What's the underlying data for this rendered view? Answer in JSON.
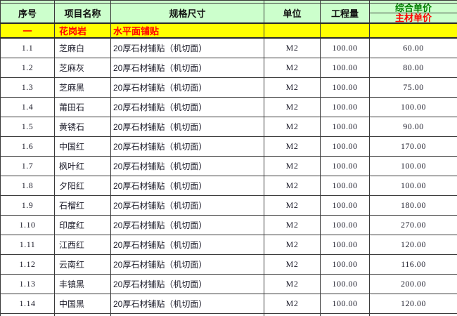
{
  "table": {
    "header": {
      "no": "序号",
      "name": "项目名称",
      "spec": "规格尺寸",
      "unit": "单位",
      "qty": "工程量",
      "price_top": "综合单价",
      "price_bottom": "主材单价"
    },
    "section": {
      "no": "一",
      "name": "花岗岩",
      "spec": "水平面铺贴"
    },
    "rows": [
      {
        "no": "1.1",
        "name": "芝麻白",
        "spec": "20厚石材铺贴（机切面）",
        "unit": "M2",
        "qty": "100.00",
        "price": "60.00"
      },
      {
        "no": "1.2",
        "name": "芝麻灰",
        "spec": "20厚石材铺贴（机切面）",
        "unit": "M2",
        "qty": "100.00",
        "price": "80.00"
      },
      {
        "no": "1.3",
        "name": "芝麻黑",
        "spec": "20厚石材铺贴（机切面）",
        "unit": "M2",
        "qty": "100.00",
        "price": "75.00"
      },
      {
        "no": "1.4",
        "name": "莆田石",
        "spec": "20厚石材铺贴（机切面）",
        "unit": "M2",
        "qty": "100.00",
        "price": "100.00"
      },
      {
        "no": "1.5",
        "name": "黄锈石",
        "spec": "20厚石材铺贴（机切面）",
        "unit": "M2",
        "qty": "100.00",
        "price": "90.00"
      },
      {
        "no": "1.6",
        "name": "中国红",
        "spec": "20厚石材铺贴（机切面）",
        "unit": "M2",
        "qty": "100.00",
        "price": "170.00"
      },
      {
        "no": "1.7",
        "name": "枫叶红",
        "spec": "20厚石材铺贴（机切面）",
        "unit": "M2",
        "qty": "100.00",
        "price": "100.00"
      },
      {
        "no": "1.8",
        "name": "夕阳红",
        "spec": "20厚石材铺贴（机切面）",
        "unit": "M2",
        "qty": "100.00",
        "price": "100.00"
      },
      {
        "no": "1.9",
        "name": "石榴红",
        "spec": "20厚石材铺贴（机切面）",
        "unit": "M2",
        "qty": "100.00",
        "price": "180.00"
      },
      {
        "no": "1.10",
        "name": "印度红",
        "spec": "20厚石材铺贴（机切面）",
        "unit": "M2",
        "qty": "100.00",
        "price": "270.00"
      },
      {
        "no": "1.11",
        "name": "江西红",
        "spec": "20厚石材铺贴（机切面）",
        "unit": "M2",
        "qty": "100.00",
        "price": "120.00"
      },
      {
        "no": "1.12",
        "name": "云南红",
        "spec": "20厚石材铺贴（机切面）",
        "unit": "M2",
        "qty": "100.00",
        "price": "116.00"
      },
      {
        "no": "1.13",
        "name": "丰镇黑",
        "spec": "20厚石材铺贴（机切面）",
        "unit": "M2",
        "qty": "100.00",
        "price": "200.00"
      },
      {
        "no": "1.14",
        "name": "中国黑",
        "spec": "20厚石材铺贴（机切面）",
        "unit": "M2",
        "qty": "100.00",
        "price": "120.00"
      }
    ]
  },
  "colors": {
    "header_bg": "#ccffcc",
    "section_bg": "#ffff00",
    "section_text": "#ff0000",
    "price_top_text": "#008000",
    "price_bottom_text": "#ff0000",
    "border": "#3a3a3a",
    "body_text": "#1c1c2a"
  }
}
